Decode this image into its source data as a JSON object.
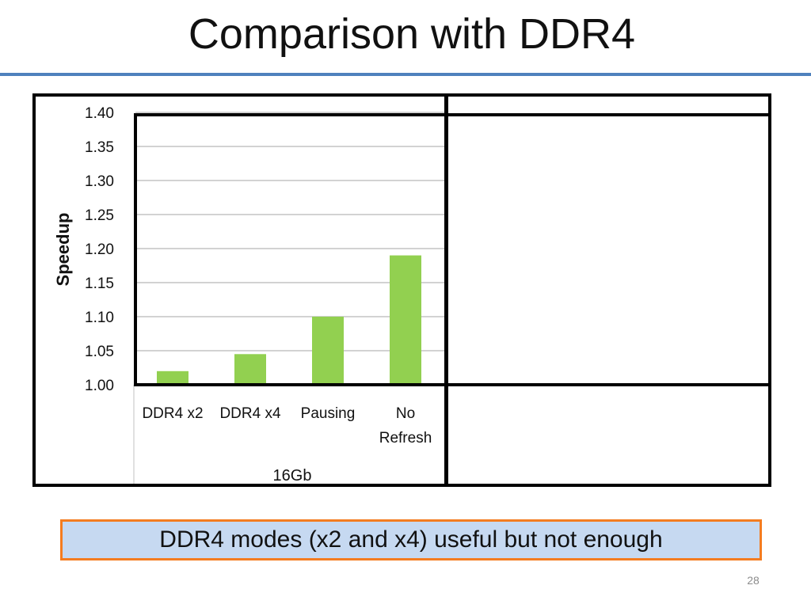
{
  "title": "Comparison with DDR4",
  "callout_text": "DDR4 modes (x2 and x4) useful but not enough",
  "slide_number": "28",
  "chart_data": {
    "type": "bar",
    "categories": [
      "DDR4 x2",
      "DDR4 x4",
      "Pausing",
      "No Refresh"
    ],
    "category_lines": [
      [
        "DDR4 x2"
      ],
      [
        "DDR4 x4"
      ],
      [
        "Pausing"
      ],
      [
        "No",
        "Refresh"
      ]
    ],
    "group_label": "16Gb",
    "values": [
      1.02,
      1.045,
      1.1,
      1.19
    ],
    "ylabel": "Speedup",
    "ylim": [
      1.0,
      1.4
    ],
    "yticks": [
      "1.00",
      "1.05",
      "1.10",
      "1.15",
      "1.20",
      "1.25",
      "1.30",
      "1.35",
      "1.40"
    ],
    "grid": true,
    "bar_color": "#92d050",
    "grid_color": "#a6a6a6"
  }
}
